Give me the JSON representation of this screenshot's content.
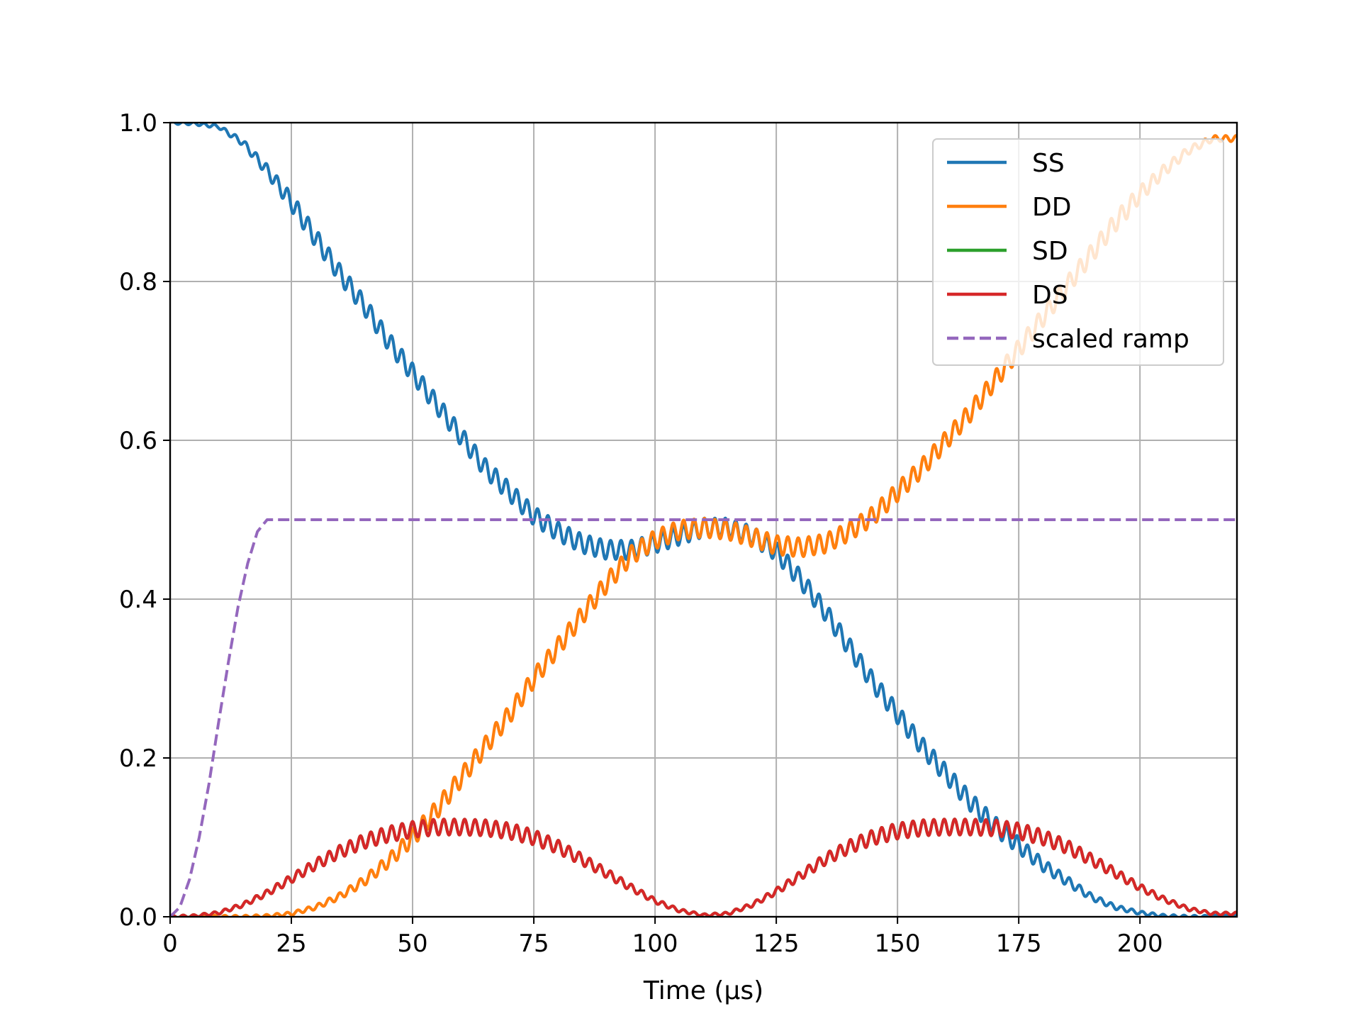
{
  "chart_data": {
    "type": "line",
    "title": "",
    "xlabel": "Time (µs)",
    "ylabel": "",
    "xlim": [
      0,
      220
    ],
    "ylim": [
      0,
      1.0
    ],
    "xticks": [
      0,
      25,
      50,
      75,
      100,
      125,
      150,
      175,
      200
    ],
    "xtick_labels": [
      "0",
      "25",
      "50",
      "75",
      "100",
      "125",
      "150",
      "175",
      "200"
    ],
    "yticks": [
      0.0,
      0.2,
      0.4,
      0.6,
      0.8,
      1.0
    ],
    "ytick_labels": [
      "0.0",
      "0.2",
      "0.4",
      "0.6",
      "0.8",
      "1.0"
    ],
    "grid": true,
    "legend_position": "top-right",
    "series": [
      {
        "name": "SS",
        "color": "#1f77b4",
        "style": "solid",
        "x": [
          0,
          5,
          10,
          15,
          20,
          25,
          30,
          35,
          40,
          45,
          50,
          55,
          60,
          65,
          70,
          75,
          80,
          85,
          90,
          95,
          100,
          105,
          110,
          115,
          120,
          125,
          130,
          135,
          140,
          145,
          150,
          155,
          160,
          165,
          170,
          175,
          180,
          185,
          190,
          195,
          200,
          205,
          210,
          215,
          220
        ],
        "y": [
          1.0,
          0.999,
          0.995,
          0.975,
          0.94,
          0.9,
          0.855,
          0.81,
          0.77,
          0.725,
          0.685,
          0.645,
          0.605,
          0.565,
          0.535,
          0.505,
          0.485,
          0.47,
          0.462,
          0.462,
          0.47,
          0.48,
          0.49,
          0.49,
          0.48,
          0.46,
          0.425,
          0.385,
          0.34,
          0.295,
          0.255,
          0.215,
          0.18,
          0.145,
          0.115,
          0.09,
          0.065,
          0.045,
          0.025,
          0.012,
          0.005,
          0.001,
          0.0,
          0.0,
          0.0
        ],
        "oscillation_amplitude": 0.012
      },
      {
        "name": "DD",
        "color": "#ff7f0e",
        "style": "solid",
        "x": [
          0,
          5,
          10,
          15,
          20,
          25,
          30,
          35,
          40,
          45,
          50,
          55,
          60,
          65,
          70,
          75,
          80,
          85,
          90,
          95,
          100,
          105,
          110,
          115,
          120,
          125,
          130,
          135,
          140,
          145,
          150,
          155,
          160,
          165,
          170,
          175,
          180,
          185,
          190,
          195,
          200,
          205,
          210,
          215,
          220
        ],
        "y": [
          0.0,
          0.0,
          0.0,
          0.0,
          0.001,
          0.004,
          0.012,
          0.026,
          0.045,
          0.07,
          0.1,
          0.135,
          0.175,
          0.215,
          0.255,
          0.3,
          0.34,
          0.38,
          0.42,
          0.455,
          0.475,
          0.487,
          0.49,
          0.487,
          0.478,
          0.468,
          0.465,
          0.47,
          0.485,
          0.505,
          0.535,
          0.565,
          0.6,
          0.635,
          0.675,
          0.715,
          0.755,
          0.795,
          0.835,
          0.875,
          0.91,
          0.94,
          0.965,
          0.98,
          0.98
        ],
        "oscillation_amplitude": 0.012
      },
      {
        "name": "SD",
        "color": "#2ca02c",
        "style": "solid",
        "x": [
          0,
          5,
          10,
          15,
          20,
          25,
          30,
          35,
          40,
          45,
          50,
          55,
          60,
          65,
          70,
          75,
          80,
          85,
          90,
          95,
          100,
          105,
          110,
          115,
          120,
          125,
          130,
          135,
          140,
          145,
          150,
          155,
          160,
          165,
          170,
          175,
          180,
          185,
          190,
          195,
          200,
          205,
          210,
          215,
          220
        ],
        "y": [
          0.0,
          0.001,
          0.005,
          0.015,
          0.03,
          0.048,
          0.066,
          0.082,
          0.095,
          0.104,
          0.11,
          0.113,
          0.113,
          0.112,
          0.108,
          0.1,
          0.088,
          0.072,
          0.055,
          0.037,
          0.02,
          0.008,
          0.002,
          0.004,
          0.015,
          0.032,
          0.052,
          0.072,
          0.088,
          0.1,
          0.108,
          0.112,
          0.113,
          0.113,
          0.112,
          0.108,
          0.1,
          0.088,
          0.072,
          0.055,
          0.037,
          0.022,
          0.01,
          0.004,
          0.004
        ],
        "oscillation_amplitude": 0.01
      },
      {
        "name": "DS",
        "color": "#d62728",
        "style": "solid",
        "x": [
          0,
          5,
          10,
          15,
          20,
          25,
          30,
          35,
          40,
          45,
          50,
          55,
          60,
          65,
          70,
          75,
          80,
          85,
          90,
          95,
          100,
          105,
          110,
          115,
          120,
          125,
          130,
          135,
          140,
          145,
          150,
          155,
          160,
          165,
          170,
          175,
          180,
          185,
          190,
          195,
          200,
          205,
          210,
          215,
          220
        ],
        "y": [
          0.0,
          0.001,
          0.005,
          0.015,
          0.03,
          0.048,
          0.066,
          0.082,
          0.095,
          0.104,
          0.11,
          0.113,
          0.113,
          0.112,
          0.108,
          0.1,
          0.088,
          0.072,
          0.055,
          0.037,
          0.02,
          0.008,
          0.002,
          0.004,
          0.015,
          0.032,
          0.052,
          0.072,
          0.088,
          0.1,
          0.108,
          0.112,
          0.113,
          0.113,
          0.112,
          0.108,
          0.1,
          0.088,
          0.072,
          0.055,
          0.037,
          0.022,
          0.01,
          0.004,
          0.004
        ],
        "oscillation_amplitude": 0.01
      },
      {
        "name": "scaled ramp",
        "color": "#9467bd",
        "style": "dashed",
        "x": [
          0,
          2,
          4,
          6,
          8,
          10,
          12,
          14,
          16,
          18,
          20,
          220
        ],
        "y": [
          0.0,
          0.012,
          0.047,
          0.1,
          0.167,
          0.245,
          0.32,
          0.39,
          0.445,
          0.485,
          0.5,
          0.5
        ],
        "oscillation_amplitude": 0
      }
    ]
  }
}
